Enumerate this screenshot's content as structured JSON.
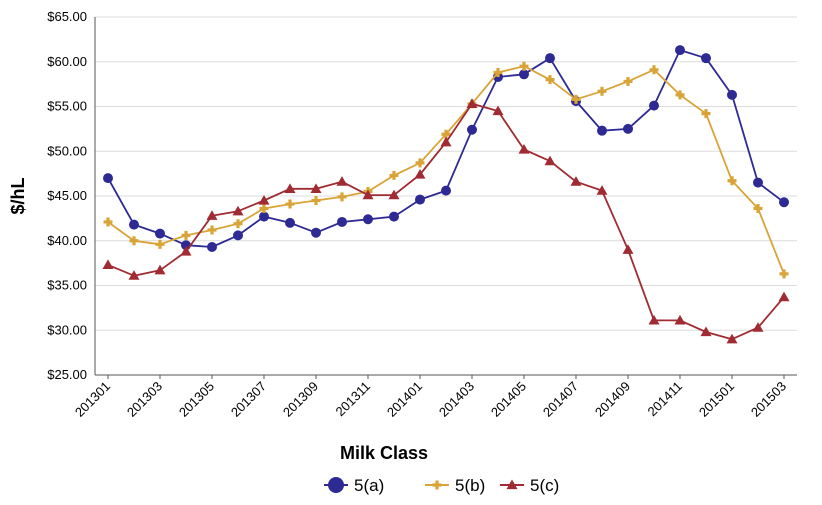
{
  "chart_data": {
    "type": "line",
    "title": "",
    "xlabel": "Milk Class",
    "ylabel": "$/hL",
    "ylim": [
      25,
      65
    ],
    "y_ticks": [
      25,
      30,
      35,
      40,
      45,
      50,
      55,
      60,
      65
    ],
    "y_tick_labels": [
      "$25.00",
      "$30.00",
      "$35.00",
      "$40.00",
      "$45.00",
      "$50.00",
      "$55.00",
      "$60.00",
      "$65.00"
    ],
    "categories": [
      "201301",
      "201302",
      "201303",
      "201304",
      "201305",
      "201306",
      "201307",
      "201308",
      "201309",
      "201310",
      "201311",
      "201312",
      "201401",
      "201402",
      "201403",
      "201404",
      "201405",
      "201406",
      "201407",
      "201408",
      "201409",
      "201410",
      "201411",
      "201412",
      "201501",
      "201502",
      "201503"
    ],
    "x_tick_labels": [
      "201301",
      "201303",
      "201305",
      "201307",
      "201309",
      "201311",
      "201401",
      "201403",
      "201405",
      "201407",
      "201409",
      "201411",
      "201501",
      "201503"
    ],
    "grid": "horizontal",
    "legend_position": "bottom",
    "series": [
      {
        "name": "5(a)",
        "color": "#2e2a94",
        "marker": "circle",
        "values": [
          47.0,
          41.8,
          40.8,
          39.5,
          39.3,
          40.6,
          42.7,
          42.0,
          40.9,
          42.1,
          42.4,
          42.7,
          44.6,
          45.6,
          52.4,
          58.3,
          58.6,
          60.4,
          55.6,
          52.3,
          52.5,
          55.1,
          61.3,
          60.4,
          56.3,
          46.5,
          44.3
        ]
      },
      {
        "name": "5(b)",
        "color": "#d9a437",
        "marker": "plus",
        "values": [
          42.1,
          40.0,
          39.6,
          40.6,
          41.2,
          41.9,
          43.6,
          44.1,
          44.5,
          44.9,
          45.5,
          47.3,
          48.7,
          51.9,
          55.3,
          58.8,
          59.5,
          58.0,
          55.8,
          56.7,
          57.8,
          59.1,
          56.3,
          54.2,
          46.7,
          43.6,
          36.3
        ]
      },
      {
        "name": "5(c)",
        "color": "#a02b32",
        "marker": "triangle",
        "values": [
          37.3,
          36.1,
          36.7,
          38.8,
          42.8,
          43.3,
          44.5,
          45.8,
          45.8,
          46.6,
          45.1,
          45.1,
          47.4,
          51.0,
          55.3,
          54.5,
          50.2,
          48.9,
          46.6,
          45.6,
          39.0,
          31.1,
          31.1,
          29.8,
          29.0,
          30.3,
          33.7
        ]
      }
    ]
  }
}
